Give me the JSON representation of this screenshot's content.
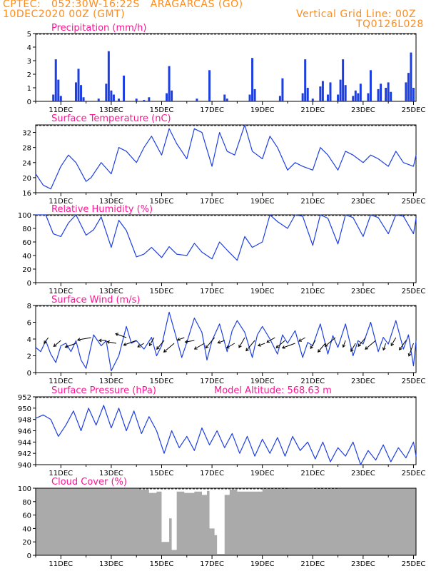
{
  "header": {
    "line1": "CPTEC:   052:30W-16:22S   ARAGARCAS (GO)",
    "line2": "10DEC2020 00Z (GMT)",
    "grid_note": "Vertical Grid Line: 00Z",
    "code": "TQ0126L028"
  },
  "colors": {
    "header": "#ff8c1a",
    "title": "#ff1493",
    "series": "#1e3fe0",
    "cloud": "#aaaaaa",
    "arrow": "#000000"
  },
  "x_tick_labels": [
    "11DEC",
    "13DEC",
    "15DEC",
    "17DEC",
    "19DEC",
    "21DEC",
    "23DEC",
    "25DEC"
  ],
  "chart_data": [
    {
      "type": "bar",
      "title": "Precipitation (mm/h)",
      "x_range_days": [
        10,
        25.1
      ],
      "ylim": [
        0,
        5
      ],
      "yticks": [
        0,
        1,
        2,
        3,
        4,
        5
      ],
      "x": [
        10.7,
        10.8,
        10.9,
        11.0,
        11.6,
        11.7,
        11.8,
        11.9,
        12.5,
        12.8,
        12.9,
        13.0,
        13.1,
        13.3,
        13.5,
        14.0,
        14.3,
        14.5,
        15.2,
        15.3,
        15.4,
        16.4,
        16.9,
        17.5,
        17.6,
        18.5,
        18.6,
        18.7,
        19.7,
        19.8,
        20.6,
        20.7,
        20.8,
        21.0,
        21.3,
        21.4,
        21.6,
        21.7,
        22.0,
        22.1,
        22.2,
        22.3,
        22.6,
        22.7,
        22.8,
        22.9,
        23.2,
        23.3,
        23.6,
        23.7,
        23.9,
        24.0,
        24.1,
        24.7,
        24.8,
        24.9,
        25.0
      ],
      "values": [
        0.5,
        3.1,
        1.6,
        0.4,
        1.4,
        2.4,
        1.2,
        0.3,
        0.2,
        1.3,
        3.7,
        0.8,
        0.5,
        0.2,
        1.9,
        0.2,
        0.1,
        0.3,
        0.6,
        2.6,
        0.8,
        0.2,
        2.3,
        0.5,
        0.2,
        0.5,
        3.2,
        0.9,
        0.4,
        1.7,
        0.6,
        3.1,
        1.0,
        0.2,
        1.1,
        1.5,
        0.5,
        1.4,
        0.5,
        1.6,
        3.1,
        1.2,
        0.4,
        0.8,
        0.6,
        1.3,
        0.6,
        2.3,
        0.9,
        1.3,
        1.0,
        1.4,
        0.7,
        1.4,
        2.1,
        3.6,
        1.0
      ]
    },
    {
      "type": "line",
      "title": "Surface Temperature (nC)",
      "x_range_days": [
        10,
        25.1
      ],
      "ylim": [
        16,
        34
      ],
      "yticks": [
        16,
        20,
        24,
        28,
        32
      ],
      "x": [
        10.0,
        10.3,
        10.6,
        11.0,
        11.3,
        11.6,
        12.0,
        12.2,
        12.6,
        13.0,
        13.3,
        13.6,
        14.0,
        14.3,
        14.6,
        15.0,
        15.3,
        15.6,
        16.0,
        16.3,
        16.6,
        17.0,
        17.3,
        17.6,
        17.9,
        18.3,
        18.6,
        19.0,
        19.3,
        19.6,
        20.0,
        20.3,
        20.6,
        21.0,
        21.3,
        21.6,
        22.0,
        22.3,
        22.6,
        23.0,
        23.3,
        23.6,
        24.0,
        24.3,
        24.6,
        25.0,
        25.1
      ],
      "values": [
        21,
        18,
        17,
        23,
        26,
        24,
        19,
        20,
        24,
        21,
        28,
        27,
        24,
        28,
        31,
        26,
        33,
        29,
        25,
        33,
        32,
        23,
        32,
        27,
        26,
        34,
        27,
        25,
        31,
        28,
        22,
        24,
        23,
        22,
        28,
        26,
        22,
        27,
        26,
        24,
        26,
        25,
        23,
        27,
        24,
        23,
        26
      ]
    },
    {
      "type": "line",
      "title": "Relative Humidity (%)",
      "x_range_days": [
        10,
        25.1
      ],
      "ylim": [
        0,
        100
      ],
      "yticks": [
        0,
        20,
        40,
        60,
        80,
        100
      ],
      "x": [
        10.0,
        10.4,
        10.7,
        11.0,
        11.3,
        11.6,
        12.0,
        12.3,
        12.6,
        13.0,
        13.3,
        13.6,
        14.0,
        14.3,
        14.6,
        15.0,
        15.3,
        15.6,
        16.0,
        16.3,
        16.6,
        17.0,
        17.3,
        17.6,
        18.0,
        18.3,
        18.6,
        19.0,
        19.3,
        19.6,
        20.0,
        20.3,
        20.6,
        21.0,
        21.3,
        21.6,
        22.0,
        22.3,
        22.6,
        23.0,
        23.3,
        23.6,
        24.0,
        24.3,
        24.6,
        25.0,
        25.1
      ],
      "values": [
        100,
        100,
        72,
        68,
        88,
        100,
        70,
        78,
        97,
        52,
        92,
        77,
        38,
        42,
        52,
        37,
        53,
        42,
        40,
        58,
        45,
        35,
        60,
        48,
        33,
        68,
        52,
        60,
        100,
        90,
        80,
        100,
        98,
        55,
        100,
        95,
        57,
        100,
        96,
        68,
        100,
        96,
        72,
        100,
        98,
        72,
        95
      ]
    },
    {
      "type": "line",
      "title": "Surface Wind (m/s)",
      "x_range_days": [
        10,
        25.1
      ],
      "ylim": [
        0,
        8
      ],
      "yticks": [
        0,
        2,
        4,
        6,
        8
      ],
      "x": [
        10.0,
        10.2,
        10.4,
        10.6,
        10.8,
        11.0,
        11.2,
        11.4,
        11.6,
        11.8,
        12.0,
        12.3,
        12.6,
        12.8,
        13.0,
        13.3,
        13.6,
        13.8,
        14.0,
        14.3,
        14.6,
        14.8,
        15.0,
        15.3,
        15.6,
        15.8,
        16.0,
        16.3,
        16.6,
        16.8,
        17.0,
        17.3,
        17.6,
        17.8,
        18.0,
        18.3,
        18.6,
        18.8,
        19.0,
        19.3,
        19.6,
        19.8,
        20.0,
        20.3,
        20.6,
        20.8,
        21.0,
        21.3,
        21.6,
        21.8,
        22.0,
        22.3,
        22.6,
        22.8,
        23.0,
        23.3,
        23.6,
        23.8,
        24.0,
        24.3,
        24.6,
        24.8,
        25.0,
        25.1
      ],
      "values": [
        3,
        2.5,
        3.8,
        2.2,
        1.2,
        3.2,
        3.5,
        2.5,
        3.8,
        1.5,
        0.5,
        4.5,
        3.2,
        3.8,
        0.2,
        2.0,
        5.5,
        3.5,
        3.8,
        2.8,
        4.2,
        2.0,
        3.2,
        7.2,
        4.0,
        1.8,
        3.6,
        6.5,
        4.8,
        1.5,
        3.8,
        5.8,
        2.5,
        5.0,
        6.2,
        4.8,
        1.8,
        4.5,
        5.5,
        4.0,
        2.2,
        4.5,
        3.5,
        5.0,
        1.8,
        3.6,
        3.2,
        5.8,
        2.2,
        4.4,
        3.0,
        5.8,
        2.0,
        3.8,
        3.4,
        6.0,
        2.5,
        4.2,
        3.4,
        6.2,
        2.8,
        4.5,
        0.8,
        3.8
      ]
    },
    {
      "type": "line",
      "title": "Surface Pressure (hPa)",
      "annotation": "Model Altitude: 568.63 m",
      "x_range_days": [
        10,
        25.1
      ],
      "ylim": [
        940,
        952
      ],
      "yticks": [
        940,
        942,
        944,
        946,
        948,
        950,
        952
      ],
      "x": [
        10.0,
        10.3,
        10.6,
        10.9,
        11.2,
        11.5,
        11.8,
        12.1,
        12.4,
        12.7,
        13.0,
        13.3,
        13.6,
        13.9,
        14.2,
        14.5,
        14.8,
        15.1,
        15.4,
        15.7,
        16.0,
        16.3,
        16.6,
        16.9,
        17.2,
        17.5,
        17.8,
        18.1,
        18.4,
        18.7,
        19.0,
        19.3,
        19.6,
        19.9,
        20.2,
        20.5,
        20.8,
        21.1,
        21.4,
        21.7,
        22.0,
        22.3,
        22.6,
        22.9,
        23.2,
        23.5,
        23.8,
        24.1,
        24.4,
        24.7,
        25.0,
        25.1
      ],
      "values": [
        948.2,
        948.8,
        948.0,
        945.0,
        947.0,
        949.5,
        946.0,
        950.0,
        947.0,
        950.5,
        946.5,
        950.0,
        946.0,
        949.5,
        945.5,
        948.5,
        946.0,
        942.0,
        946.0,
        943.0,
        945.0,
        942.5,
        946.5,
        943.5,
        946.0,
        943.0,
        945.5,
        942.0,
        945.0,
        941.5,
        944.5,
        942.0,
        944.8,
        941.5,
        945.0,
        942.5,
        944.0,
        941.0,
        944.0,
        940.5,
        943.0,
        941.5,
        944.0,
        940.0,
        942.5,
        940.8,
        943.5,
        940.5,
        943.0,
        941.2,
        944.0,
        941.5
      ]
    },
    {
      "type": "area",
      "title": "Cloud Cover (%)",
      "x_range_days": [
        10,
        25.1
      ],
      "ylim": [
        0,
        100
      ],
      "yticks": [
        0,
        20,
        40,
        60,
        80,
        100
      ],
      "x": [
        10.0,
        13.9,
        14.1,
        14.5,
        14.8,
        15.0,
        15.3,
        15.4,
        15.6,
        15.9,
        16.1,
        16.3,
        16.6,
        16.8,
        16.9,
        17.1,
        17.2,
        17.5,
        17.7,
        18.0,
        19.0,
        20.0,
        21.0,
        22.0,
        23.0,
        24.0,
        25.0,
        25.1
      ],
      "values": [
        100,
        100,
        98,
        93,
        95,
        20,
        55,
        8,
        95,
        93,
        93,
        95,
        90,
        96,
        40,
        30,
        2,
        90,
        98,
        95,
        99,
        100,
        99,
        100,
        100,
        100,
        100,
        100
      ]
    }
  ]
}
